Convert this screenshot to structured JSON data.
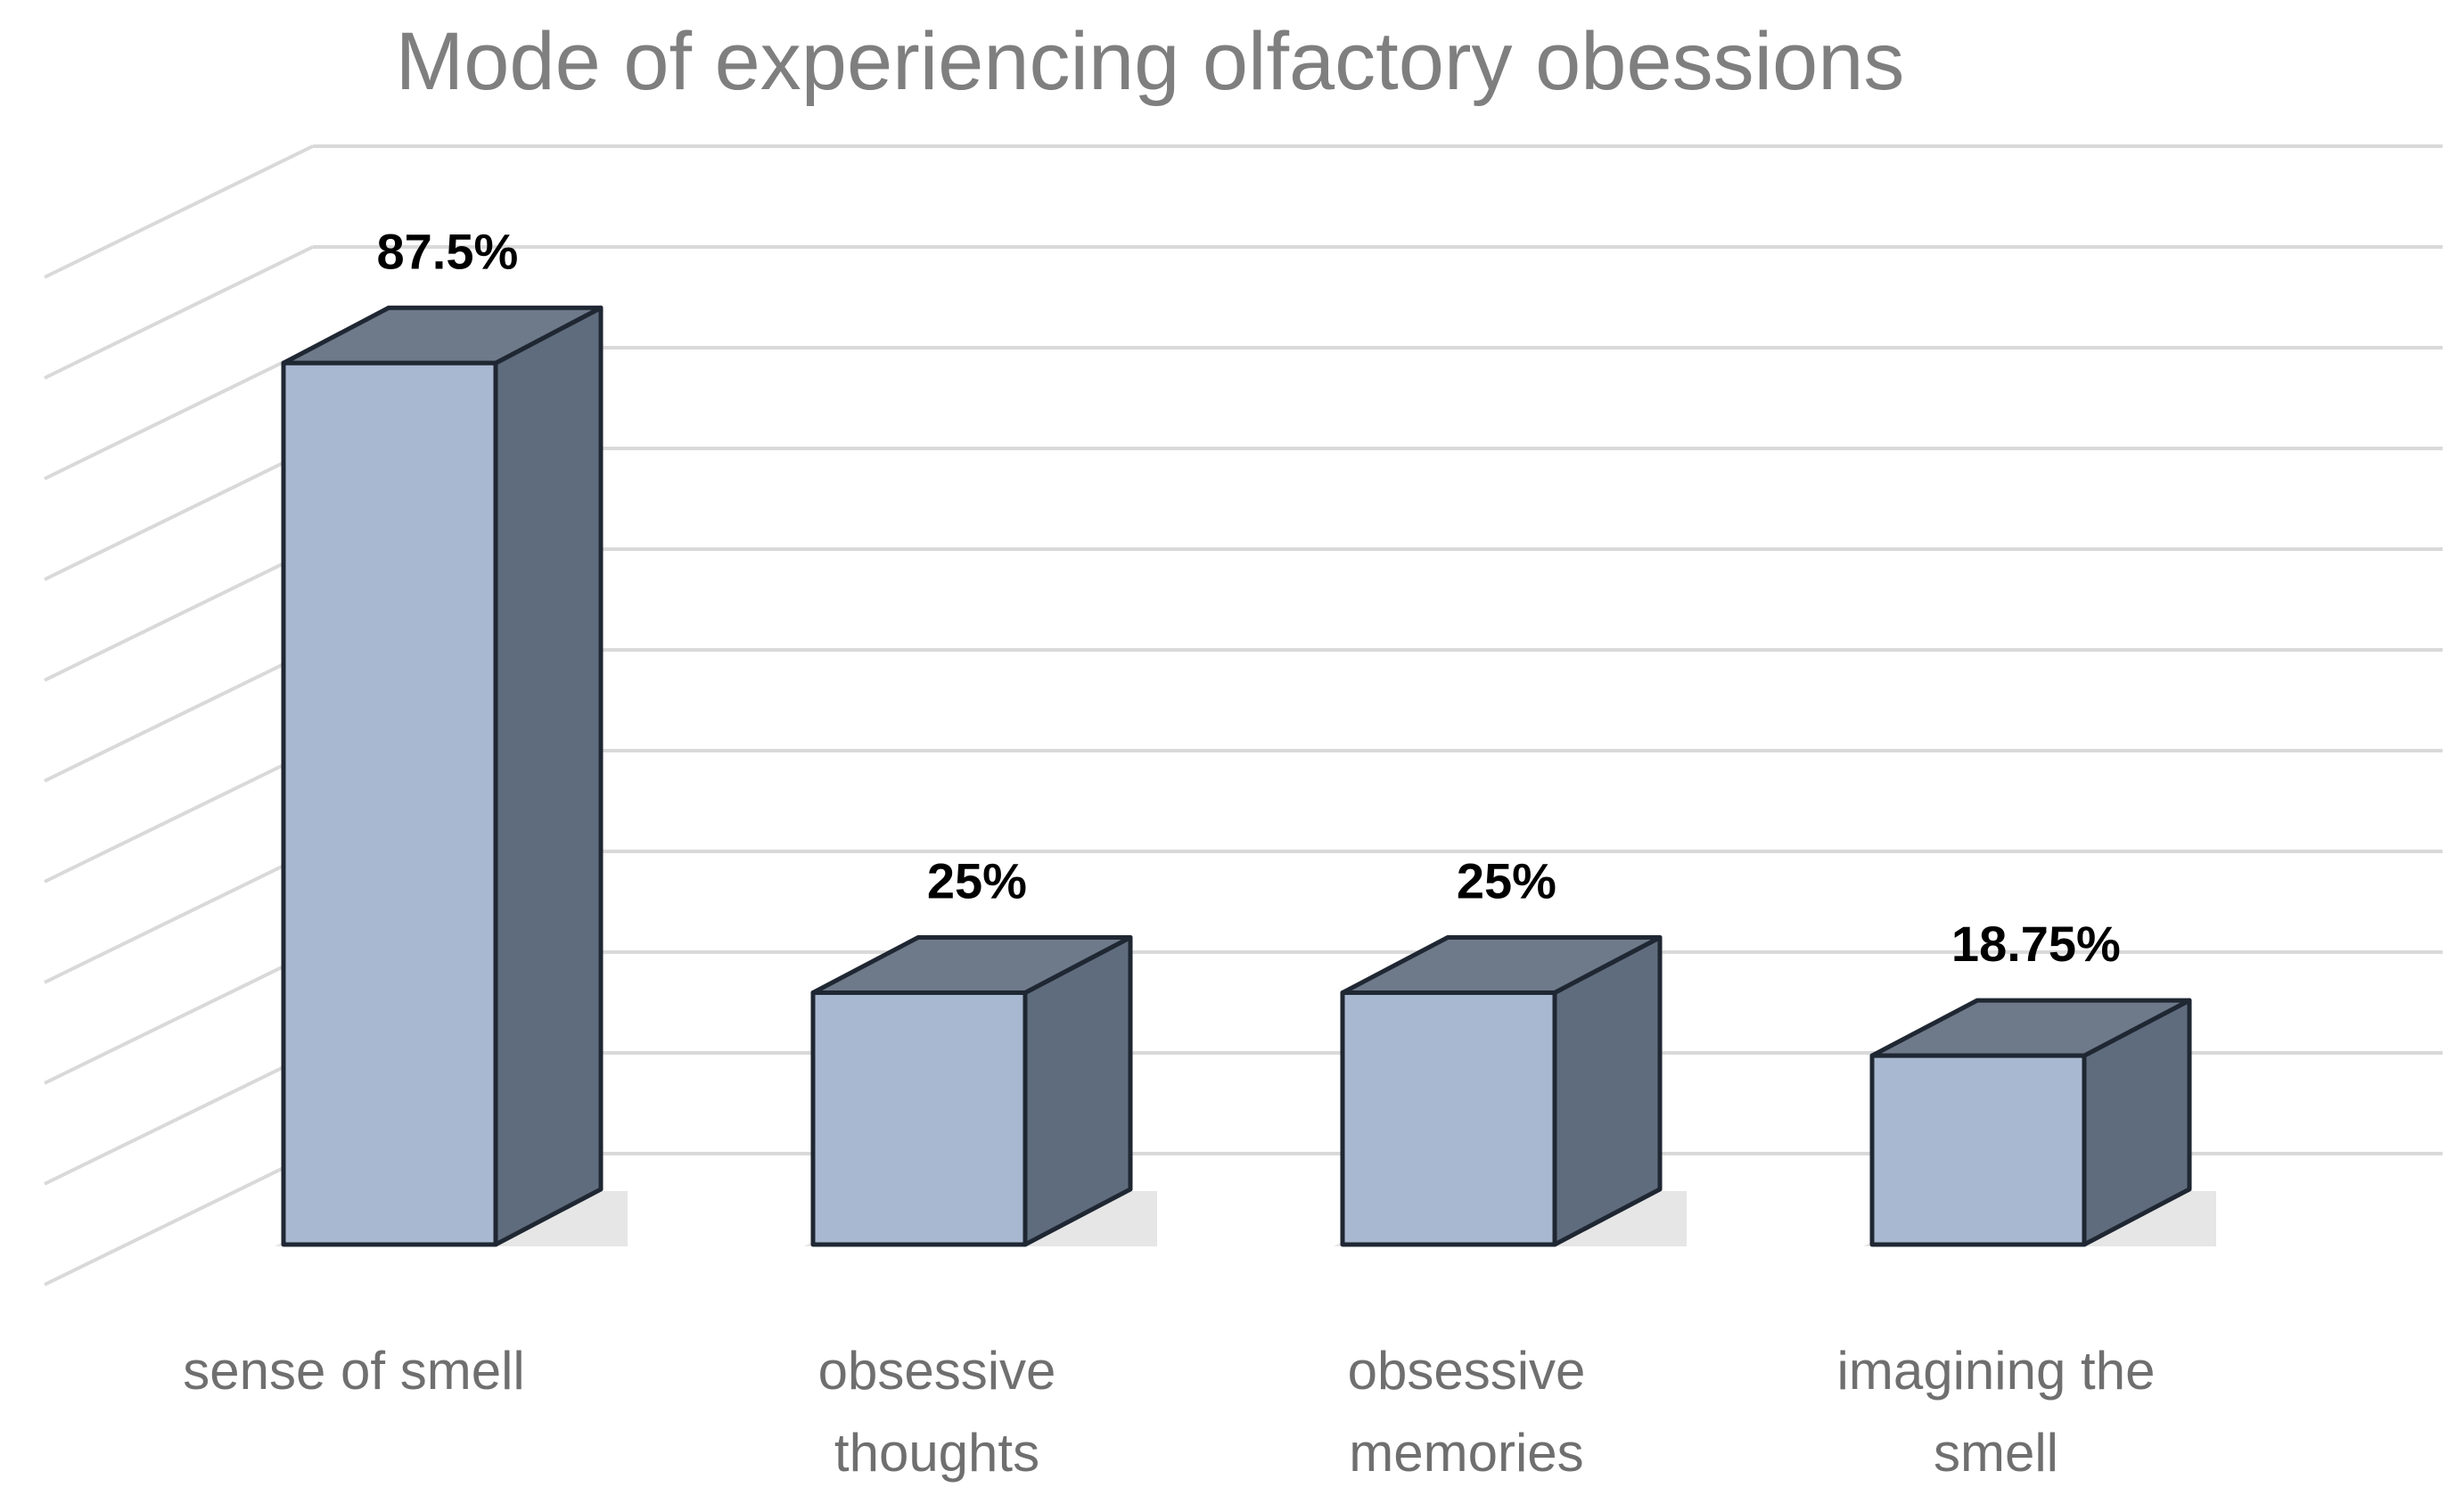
{
  "chart_data": {
    "type": "bar",
    "title": "Mode of experiencing  olfactory obessions",
    "categories": [
      [
        "sense of smell"
      ],
      [
        "obsessive",
        "thoughts"
      ],
      [
        "obsessive",
        "memories"
      ],
      [
        "imagining the",
        "smell"
      ]
    ],
    "values": [
      87.5,
      25,
      25,
      18.75
    ],
    "data_labels": [
      "87.5%",
      "25%",
      "25%",
      "18.75%"
    ],
    "xlabel": "",
    "ylabel": "",
    "ylim": [
      0,
      100
    ],
    "grid": true,
    "style": "3d-column",
    "colors": {
      "front": "#a9b8d1",
      "side": "#5f6c7d",
      "top": "#6e7a8a",
      "edge": "#1f2733",
      "grid": "#d9d9d9"
    }
  }
}
